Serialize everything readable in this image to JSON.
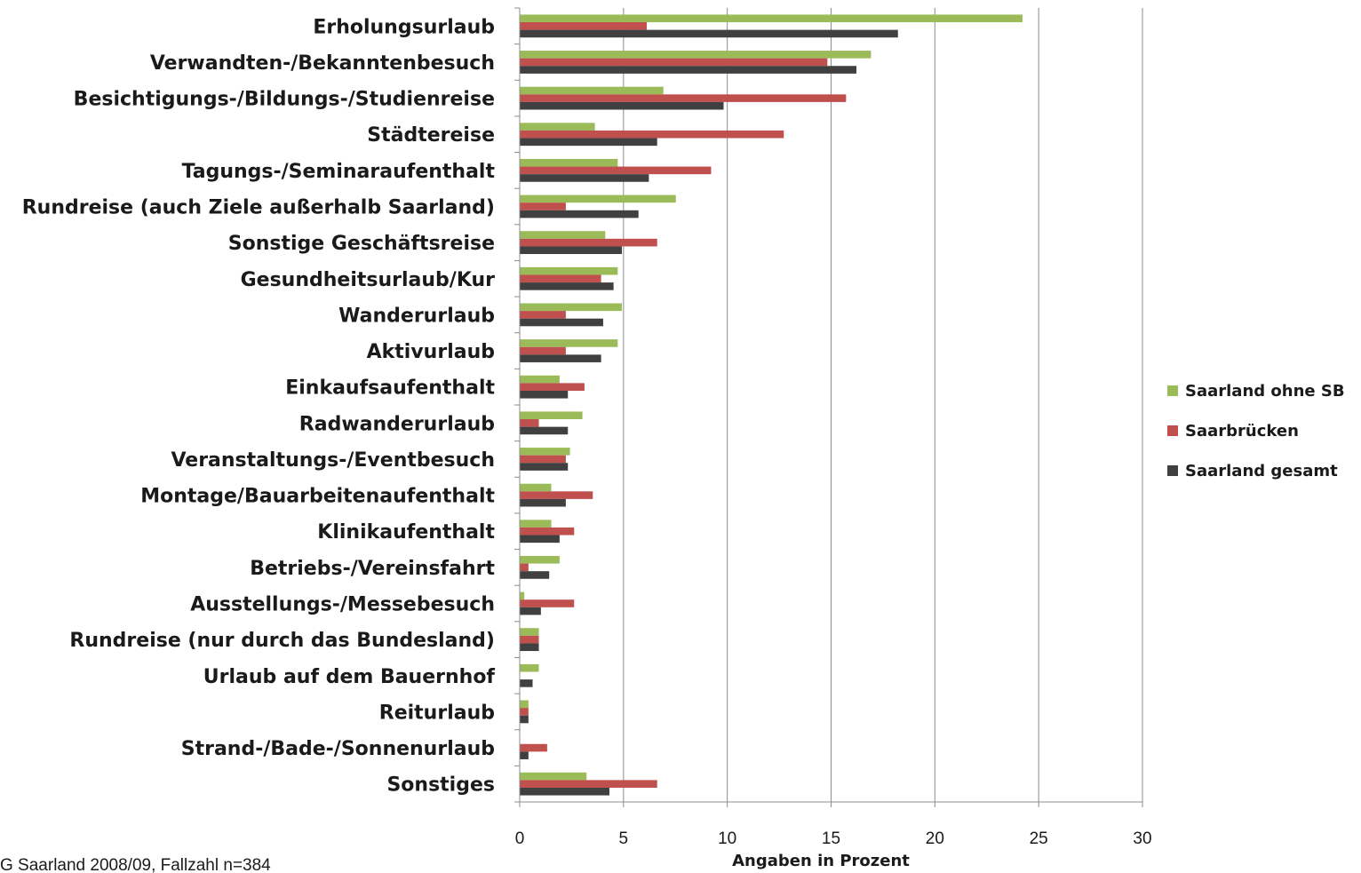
{
  "source_note": "G Saarland 2008/09, Fallzahl n=384",
  "chart_data": {
    "type": "bar",
    "orientation": "horizontal",
    "xlabel": "Angaben in Prozent",
    "xlim": [
      0,
      30
    ],
    "xticks": [
      0,
      5,
      10,
      15,
      20,
      25,
      30
    ],
    "grid": true,
    "legend_position": "right",
    "categories": [
      "Erholungsurlaub",
      "Verwandten-/Bekanntenbesuch",
      "Besichtigungs-/Bildungs-/Studienreise",
      "Städtereise",
      "Tagungs-/Seminaraufenthalt",
      "Rundreise (auch Ziele außerhalb Saarland)",
      "Sonstige Geschäftsreise",
      "Gesundheitsurlaub/Kur",
      "Wanderurlaub",
      "Aktivurlaub",
      "Einkaufsaufenthalt",
      "Radwanderurlaub",
      "Veranstaltungs-/Eventbesuch",
      "Montage/Bauarbeitenaufenthalt",
      "Klinikaufenthalt",
      "Betriebs-/Vereinsfahrt",
      "Ausstellungs-/Messebesuch",
      "Rundreise (nur durch das Bundesland)",
      "Urlaub auf dem Bauernhof",
      "Reiturlaub",
      "Strand-/Bade-/Sonnenurlaub",
      "Sonstiges"
    ],
    "series": [
      {
        "name": "Saarland ohne SB",
        "color": "#9bbb59",
        "values": [
          24.2,
          16.9,
          6.9,
          3.6,
          4.7,
          7.5,
          4.1,
          4.7,
          4.9,
          4.7,
          1.9,
          3.0,
          2.4,
          1.5,
          1.5,
          1.9,
          0.2,
          0.9,
          0.9,
          0.4,
          0.0,
          3.2
        ]
      },
      {
        "name": "Saarbrücken",
        "color": "#c0504d",
        "values": [
          6.1,
          14.8,
          15.7,
          12.7,
          9.2,
          2.2,
          6.6,
          3.9,
          2.2,
          2.2,
          3.1,
          0.9,
          2.2,
          3.5,
          2.6,
          0.4,
          2.6,
          0.9,
          0.0,
          0.4,
          1.3,
          6.6
        ]
      },
      {
        "name": "Saarland gesamt",
        "color": "#404040",
        "values": [
          18.2,
          16.2,
          9.8,
          6.6,
          6.2,
          5.7,
          4.9,
          4.5,
          4.0,
          3.9,
          2.3,
          2.3,
          2.3,
          2.2,
          1.9,
          1.4,
          1.0,
          0.9,
          0.6,
          0.4,
          0.4,
          4.3
        ]
      }
    ]
  }
}
